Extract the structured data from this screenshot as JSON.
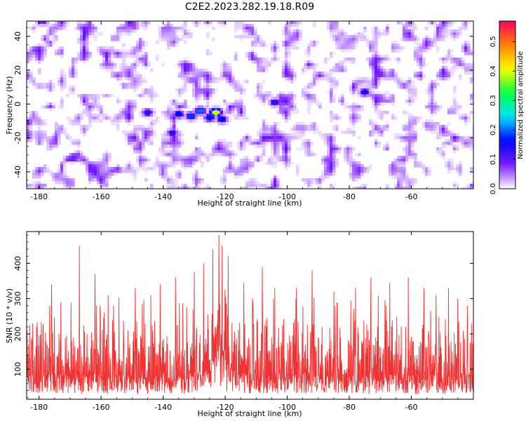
{
  "title": "C2E2.2023.282.19.18.R09",
  "chart_data": [
    {
      "type": "heatmap",
      "xlabel": "Height of straight line (km)",
      "ylabel": "Frequency (Hz)",
      "xlim": [
        -184,
        -40
      ],
      "ylim": [
        -50,
        49
      ],
      "x_ticks": [
        "-180",
        "-160",
        "-140",
        "-120",
        "-100",
        "-80",
        "-60"
      ],
      "y_ticks": [
        "40",
        "20",
        "0",
        "-20",
        "-40"
      ],
      "colorbar": {
        "label": "Normalized spectral amplitude",
        "range": [
          0.0,
          0.57
        ],
        "ticks": [
          "0.0",
          "0.1",
          "0.2",
          "0.3",
          "0.4",
          "0.5"
        ],
        "colors": [
          "#ffffff",
          "#7b1cff",
          "#0000ff",
          "#00e5ff",
          "#00ff40",
          "#ffff00",
          "#ff8000",
          "#ff0060"
        ]
      },
      "background_level": 0.08,
      "hotspots": [
        {
          "x": -131,
          "y": -7,
          "amplitude": 0.18
        },
        {
          "x": -128,
          "y": -4,
          "amplitude": 0.2
        },
        {
          "x": -125,
          "y": -8,
          "amplitude": 0.17
        },
        {
          "x": -123,
          "y": -5,
          "amplitude": 0.43
        },
        {
          "x": -121,
          "y": -9,
          "amplitude": 0.16
        },
        {
          "x": -135,
          "y": -6,
          "amplitude": 0.16
        },
        {
          "x": -145,
          "y": -5,
          "amplitude": 0.14
        },
        {
          "x": -137,
          "y": -17,
          "amplitude": 0.13
        },
        {
          "x": -104,
          "y": 1,
          "amplitude": 0.13
        },
        {
          "x": -75,
          "y": 7,
          "amplitude": 0.14
        }
      ]
    },
    {
      "type": "line",
      "xlabel": "Height of straight line (km)",
      "ylabel": "SNR (10 * v/v)",
      "xlim": [
        -184,
        -40
      ],
      "ylim": [
        15,
        490
      ],
      "x_ticks": [
        "-180",
        "-160",
        "-140",
        "-120",
        "-100",
        "-80",
        "-60"
      ],
      "y_ticks": [
        "400",
        "300",
        "200",
        "100"
      ],
      "color": "#f03232",
      "baseline_mean": 130,
      "typical_peak": 270,
      "peaks": [
        {
          "x": -182,
          "y": 230
        },
        {
          "x": -176,
          "y": 340
        },
        {
          "x": -173,
          "y": 290
        },
        {
          "x": -167,
          "y": 450
        },
        {
          "x": -162,
          "y": 370
        },
        {
          "x": -156,
          "y": 280
        },
        {
          "x": -149,
          "y": 330
        },
        {
          "x": -144,
          "y": 310
        },
        {
          "x": -141,
          "y": 340
        },
        {
          "x": -136,
          "y": 360
        },
        {
          "x": -130,
          "y": 375
        },
        {
          "x": -127,
          "y": 400
        },
        {
          "x": -124,
          "y": 440
        },
        {
          "x": -122,
          "y": 480
        },
        {
          "x": -121,
          "y": 450
        },
        {
          "x": -119,
          "y": 420
        },
        {
          "x": -114,
          "y": 345
        },
        {
          "x": -108,
          "y": 390
        },
        {
          "x": -104,
          "y": 330
        },
        {
          "x": -97,
          "y": 330
        },
        {
          "x": -92,
          "y": 380
        },
        {
          "x": -85,
          "y": 320
        },
        {
          "x": -78,
          "y": 330
        },
        {
          "x": -73,
          "y": 360
        },
        {
          "x": -67,
          "y": 345
        },
        {
          "x": -61,
          "y": 360
        },
        {
          "x": -56,
          "y": 330
        },
        {
          "x": -52,
          "y": 310
        },
        {
          "x": -48,
          "y": 330
        },
        {
          "x": -45,
          "y": 300
        },
        {
          "x": -42,
          "y": 280
        }
      ]
    }
  ]
}
